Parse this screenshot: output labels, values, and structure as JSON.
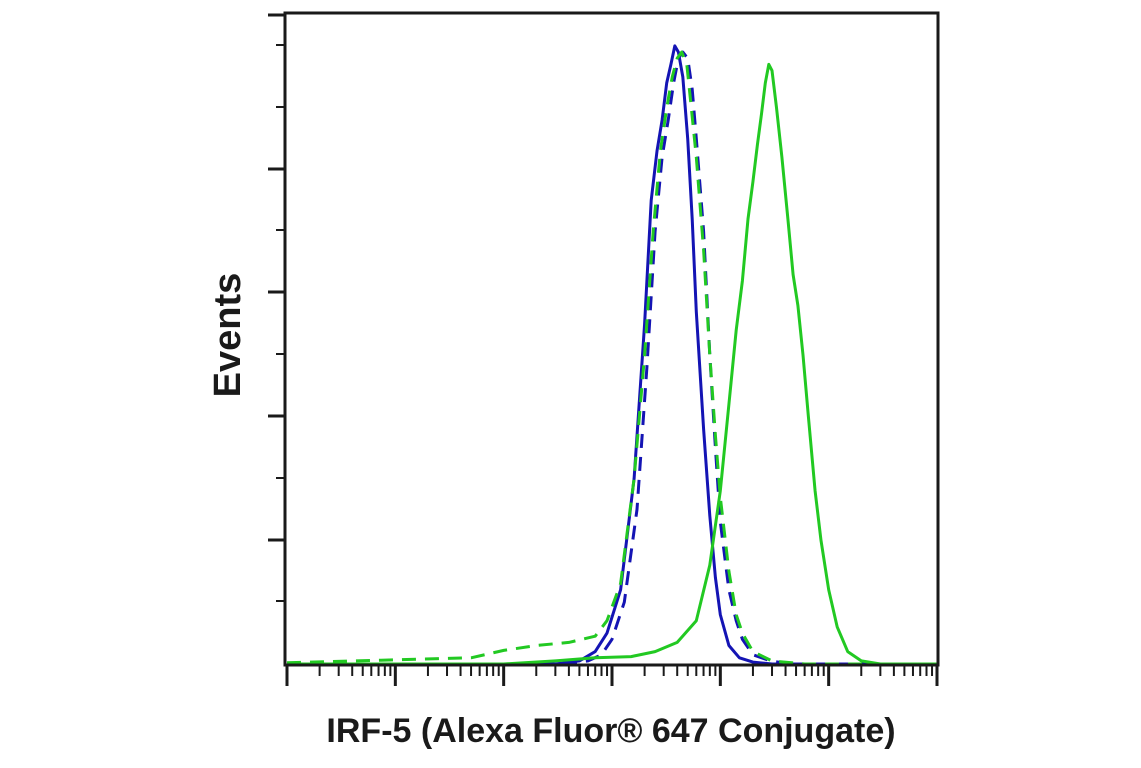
{
  "chart_data": {
    "type": "line",
    "title": "",
    "xlabel": "IRF-5 (Alexa Fluor® 647 Conjugate)",
    "ylabel": "Events",
    "x_scale": "log",
    "xlim": [
      1,
      1000000
    ],
    "ylim": [
      0,
      1.05
    ],
    "grid": false,
    "legend": "none",
    "series": [
      {
        "color": "#1414b4",
        "style": "solid",
        "points": [
          [
            1,
            0
          ],
          [
            300,
            0
          ],
          [
            500,
            0.005
          ],
          [
            700,
            0.02
          ],
          [
            900,
            0.05
          ],
          [
            1200,
            0.12
          ],
          [
            1600,
            0.3
          ],
          [
            2000,
            0.55
          ],
          [
            2300,
            0.75
          ],
          [
            2600,
            0.83
          ],
          [
            2900,
            0.88
          ],
          [
            3200,
            0.94
          ],
          [
            3500,
            0.97
          ],
          [
            3800,
            1.0
          ],
          [
            4100,
            0.99
          ],
          [
            4500,
            0.95
          ],
          [
            5000,
            0.85
          ],
          [
            5500,
            0.72
          ],
          [
            6000,
            0.57
          ],
          [
            7000,
            0.38
          ],
          [
            8000,
            0.24
          ],
          [
            9000,
            0.14
          ],
          [
            10000,
            0.08
          ],
          [
            12000,
            0.03
          ],
          [
            15000,
            0.01
          ],
          [
            20000,
            0.003
          ],
          [
            30000,
            0
          ],
          [
            1000000,
            0
          ]
        ]
      },
      {
        "color": "#1414b4",
        "style": "dashed",
        "points": [
          [
            1,
            0
          ],
          [
            300,
            0
          ],
          [
            600,
            0.005
          ],
          [
            800,
            0.015
          ],
          [
            1000,
            0.04
          ],
          [
            1300,
            0.1
          ],
          [
            1700,
            0.25
          ],
          [
            2100,
            0.48
          ],
          [
            2500,
            0.7
          ],
          [
            2900,
            0.82
          ],
          [
            3300,
            0.88
          ],
          [
            3700,
            0.94
          ],
          [
            4100,
            0.98
          ],
          [
            4500,
            0.99
          ],
          [
            5000,
            0.98
          ],
          [
            5500,
            0.93
          ],
          [
            6000,
            0.85
          ],
          [
            7000,
            0.7
          ],
          [
            8000,
            0.5
          ],
          [
            9000,
            0.35
          ],
          [
            10000,
            0.23
          ],
          [
            12000,
            0.12
          ],
          [
            14000,
            0.07
          ],
          [
            16000,
            0.04
          ],
          [
            20000,
            0.015
          ],
          [
            30000,
            0.004
          ],
          [
            50000,
            0
          ],
          [
            1000000,
            0
          ]
        ]
      },
      {
        "color": "#22c922",
        "style": "dashed",
        "points": [
          [
            1,
            0.002
          ],
          [
            50,
            0.01
          ],
          [
            100,
            0.022
          ],
          [
            200,
            0.03
          ],
          [
            400,
            0.035
          ],
          [
            700,
            0.045
          ],
          [
            900,
            0.07
          ],
          [
            1200,
            0.13
          ],
          [
            1600,
            0.3
          ],
          [
            2000,
            0.5
          ],
          [
            2400,
            0.7
          ],
          [
            2800,
            0.83
          ],
          [
            3200,
            0.9
          ],
          [
            3600,
            0.95
          ],
          [
            4000,
            0.98
          ],
          [
            4400,
            0.99
          ],
          [
            4900,
            0.97
          ],
          [
            5400,
            0.9
          ],
          [
            6000,
            0.82
          ],
          [
            7000,
            0.67
          ],
          [
            8000,
            0.5
          ],
          [
            9000,
            0.37
          ],
          [
            10000,
            0.27
          ],
          [
            12000,
            0.15
          ],
          [
            14000,
            0.08
          ],
          [
            16000,
            0.05
          ],
          [
            20000,
            0.02
          ],
          [
            30000,
            0.005
          ],
          [
            60000,
            0
          ],
          [
            1000000,
            0
          ]
        ]
      },
      {
        "color": "#22c922",
        "style": "solid",
        "points": [
          [
            1,
            0
          ],
          [
            100,
            0
          ],
          [
            300,
            0.005
          ],
          [
            700,
            0.01
          ],
          [
            1500,
            0.012
          ],
          [
            2500,
            0.02
          ],
          [
            4000,
            0.035
          ],
          [
            6000,
            0.07
          ],
          [
            8000,
            0.16
          ],
          [
            10000,
            0.28
          ],
          [
            12000,
            0.42
          ],
          [
            14000,
            0.54
          ],
          [
            16000,
            0.62
          ],
          [
            18000,
            0.72
          ],
          [
            20000,
            0.78
          ],
          [
            22000,
            0.84
          ],
          [
            24000,
            0.89
          ],
          [
            26000,
            0.94
          ],
          [
            28000,
            0.97
          ],
          [
            30000,
            0.96
          ],
          [
            33000,
            0.9
          ],
          [
            37000,
            0.82
          ],
          [
            42000,
            0.72
          ],
          [
            47000,
            0.63
          ],
          [
            52000,
            0.58
          ],
          [
            58000,
            0.5
          ],
          [
            65000,
            0.4
          ],
          [
            75000,
            0.28
          ],
          [
            85000,
            0.2
          ],
          [
            100000,
            0.12
          ],
          [
            120000,
            0.06
          ],
          [
            150000,
            0.02
          ],
          [
            200000,
            0.005
          ],
          [
            300000,
            0
          ],
          [
            1000000,
            0
          ]
        ]
      }
    ]
  }
}
